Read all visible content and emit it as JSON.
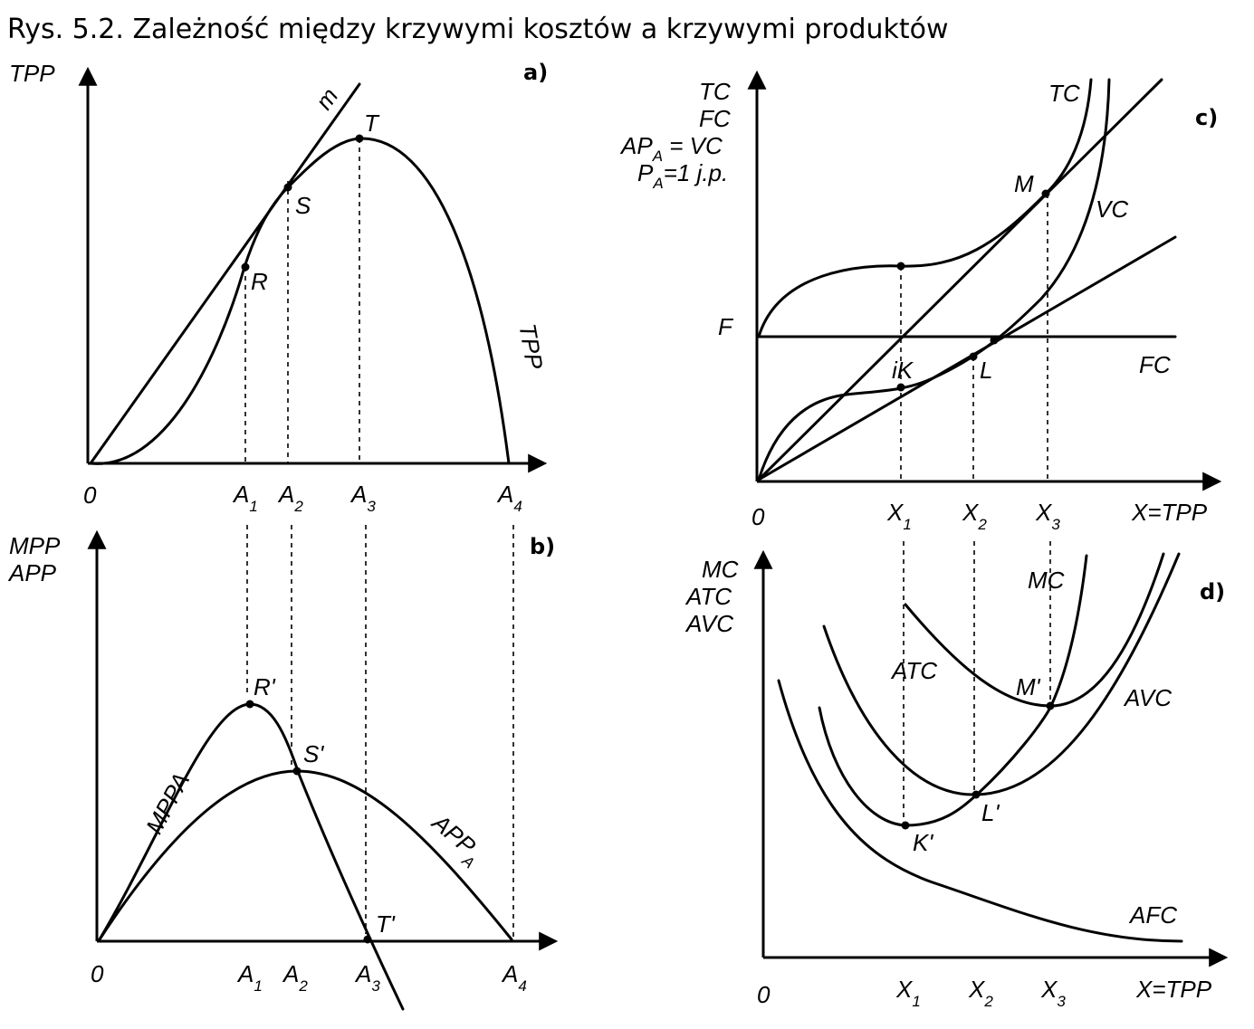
{
  "title": "Rys. 5.2. Zależność między krzywymi kosztów a krzywymi produktów",
  "panel_a": {
    "tag": "a)",
    "y_label": "TPP",
    "origin": "0",
    "tangent_label": "m",
    "points": {
      "R": "R",
      "S": "S",
      "T": "T"
    },
    "curve_label": "TPP",
    "x_ticks": [
      {
        "main": "A",
        "sub": "1"
      },
      {
        "main": "A",
        "sub": "2"
      },
      {
        "main": "A",
        "sub": "3"
      },
      {
        "main": "A",
        "sub": "4"
      }
    ]
  },
  "panel_b": {
    "tag": "b)",
    "y_label_1": "MPP",
    "y_label_2": "APP",
    "origin": "0",
    "points": {
      "R": "R'",
      "S": "S'",
      "T": "T'"
    },
    "mpp_label": "MPPA",
    "app_label_main": "APP",
    "app_label_sub": "A",
    "x_ticks": [
      {
        "main": "A",
        "sub": "1"
      },
      {
        "main": "A",
        "sub": "2"
      },
      {
        "main": "A",
        "sub": "3"
      },
      {
        "main": "A",
        "sub": "4"
      }
    ]
  },
  "panel_c": {
    "tag": "c)",
    "y_label_1": "TC",
    "y_label_2": "FC",
    "y_label_3_main": "AP",
    "y_label_3_sub": "A",
    "y_label_3_rest": " = VC",
    "y_label_4_main": "P",
    "y_label_4_sub": "A",
    "y_label_4_rest": "=1 j.p.",
    "f_label": "F",
    "origin": "0",
    "tc_label": "TC",
    "vc_label": "VC",
    "fc_label": "FC",
    "points": {
      "M": "M",
      "K": "iK",
      "L": "L"
    },
    "x_axis_label": "X=TPP",
    "x_ticks": [
      {
        "main": "X",
        "sub": "1"
      },
      {
        "main": "X",
        "sub": "2"
      },
      {
        "main": "X",
        "sub": "3"
      }
    ]
  },
  "panel_d": {
    "tag": "d)",
    "y_label_1": "MC",
    "y_label_2": "ATC",
    "y_label_3": "AVC",
    "origin": "0",
    "mc_label": "MC",
    "atc_label": "ATC",
    "avc_label": "AVC",
    "afc_label": "AFC",
    "points": {
      "M": "M'",
      "K": "K'",
      "L": "L'"
    },
    "x_axis_label": "X=TPP",
    "x_ticks": [
      {
        "main": "X",
        "sub": "1"
      },
      {
        "main": "X",
        "sub": "2"
      },
      {
        "main": "X",
        "sub": "3"
      }
    ]
  }
}
